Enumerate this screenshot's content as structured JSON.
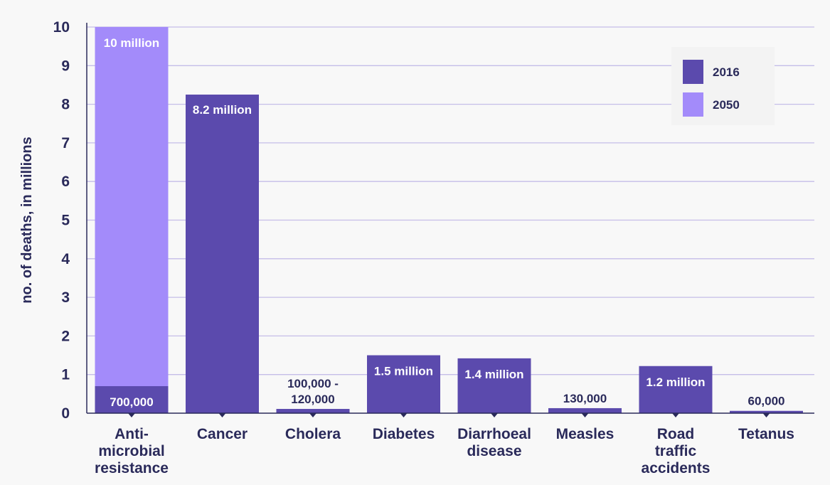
{
  "colors": {
    "series_2016": "#5b4aad",
    "series_2050": "#a38bfa",
    "grid": "#c5bde8",
    "axis": "#2a2a5a",
    "background": "#f8f8f8",
    "legend_bg": "#f3f3f3",
    "label_light": "#ffffff",
    "label_dark": "#2a2a5a"
  },
  "chart_data": {
    "type": "bar",
    "title": "",
    "xlabel": "",
    "ylabel": "no. of deaths, in millions",
    "ylim": [
      0,
      10
    ],
    "yticks": [
      0,
      1,
      2,
      3,
      4,
      5,
      6,
      7,
      8,
      9,
      10
    ],
    "grid": true,
    "legend_position": "top-right",
    "categories": [
      [
        "Anti-",
        "microbial",
        "resistance"
      ],
      [
        "Cancer"
      ],
      [
        "Cholera"
      ],
      [
        "Diabetes"
      ],
      [
        "Diarrhoeal",
        "disease"
      ],
      [
        "Measles"
      ],
      [
        "Road",
        "traffic",
        "accidents"
      ],
      [
        "Tetanus"
      ]
    ],
    "series": [
      {
        "name": "2016",
        "values": [
          0.7,
          8.25,
          0.11,
          1.5,
          1.42,
          0.13,
          1.22,
          0.06
        ]
      },
      {
        "name": "2050",
        "values": [
          10,
          null,
          null,
          null,
          null,
          null,
          null,
          null
        ]
      }
    ],
    "data_labels": [
      {
        "category": 0,
        "series": "2016",
        "text": [
          "700,000"
        ],
        "placement": "inside"
      },
      {
        "category": 0,
        "series": "2050",
        "text": [
          "10 million"
        ],
        "placement": "inside"
      },
      {
        "category": 1,
        "series": "2016",
        "text": [
          "8.2 million"
        ],
        "placement": "inside"
      },
      {
        "category": 2,
        "series": "2016",
        "text": [
          "100,000 -",
          "120,000"
        ],
        "placement": "above"
      },
      {
        "category": 3,
        "series": "2016",
        "text": [
          "1.5 million"
        ],
        "placement": "inside"
      },
      {
        "category": 4,
        "series": "2016",
        "text": [
          "1.4 million"
        ],
        "placement": "inside"
      },
      {
        "category": 5,
        "series": "2016",
        "text": [
          "130,000"
        ],
        "placement": "above"
      },
      {
        "category": 6,
        "series": "2016",
        "text": [
          "1.2 million"
        ],
        "placement": "inside"
      },
      {
        "category": 7,
        "series": "2016",
        "text": [
          "60,000"
        ],
        "placement": "above"
      }
    ]
  }
}
